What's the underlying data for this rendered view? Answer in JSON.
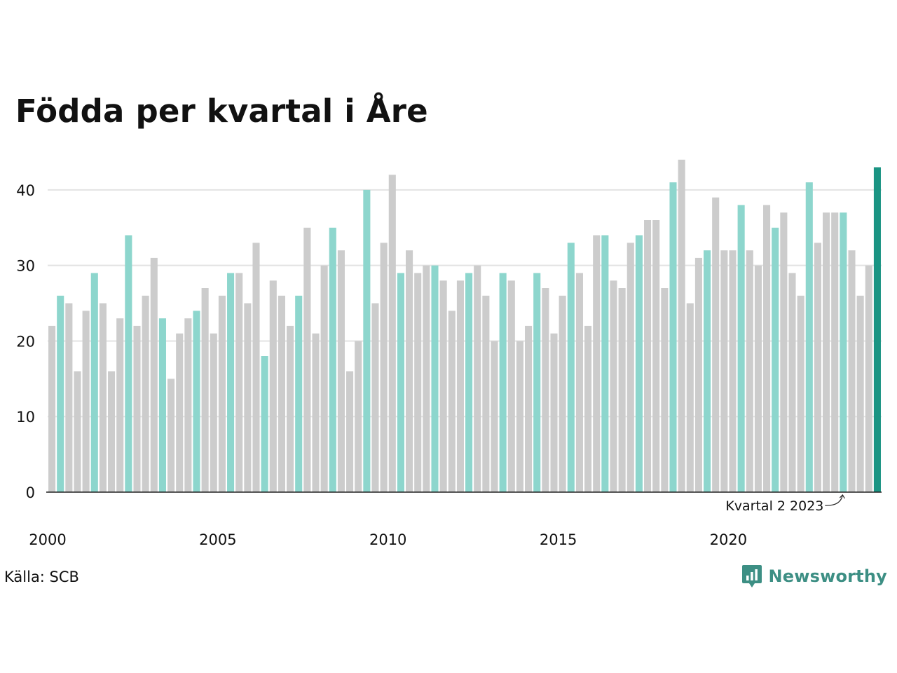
{
  "chart_data": {
    "type": "bar",
    "title": "Födda per kvartal i Åre",
    "xlabel": "",
    "ylabel": "",
    "ylim": [
      0,
      45
    ],
    "yticks": [
      0,
      10,
      20,
      30,
      40
    ],
    "xticks": [
      "2000",
      "2005",
      "2010",
      "2015",
      "2020"
    ],
    "grid": true,
    "first_period": "Kvartal 1 2000",
    "last_period": "Kvartal 2 2024",
    "highlight_quarter": 2,
    "values": [
      22,
      26,
      25,
      16,
      24,
      29,
      25,
      16,
      23,
      34,
      22,
      26,
      31,
      23,
      15,
      21,
      23,
      24,
      27,
      21,
      26,
      29,
      29,
      25,
      33,
      18,
      28,
      26,
      22,
      26,
      35,
      21,
      30,
      35,
      32,
      16,
      20,
      40,
      25,
      33,
      42,
      29,
      32,
      29,
      30,
      30,
      28,
      24,
      28,
      29,
      30,
      26,
      20,
      29,
      28,
      20,
      22,
      29,
      27,
      21,
      26,
      33,
      29,
      22,
      34,
      34,
      28,
      27,
      33,
      34,
      36,
      36,
      27,
      41,
      44,
      25,
      31,
      32,
      39,
      32,
      32,
      38,
      32,
      30,
      38,
      35,
      37,
      29,
      26,
      41,
      33,
      37,
      37,
      37,
      32,
      26,
      30,
      43
    ],
    "annotation": "Kvartal 2 2023"
  },
  "colors": {
    "bar_default": "#cccccc",
    "bar_highlight": "#8dd6cd",
    "bar_latest": "#1a9483",
    "grid": "#e3e3e3",
    "baseline": "#222222",
    "brand": "#3d8f84"
  },
  "source": "Källa: SCB",
  "brand": {
    "name": "Newsworthy",
    "icon": "newsworthy-logo-icon"
  }
}
